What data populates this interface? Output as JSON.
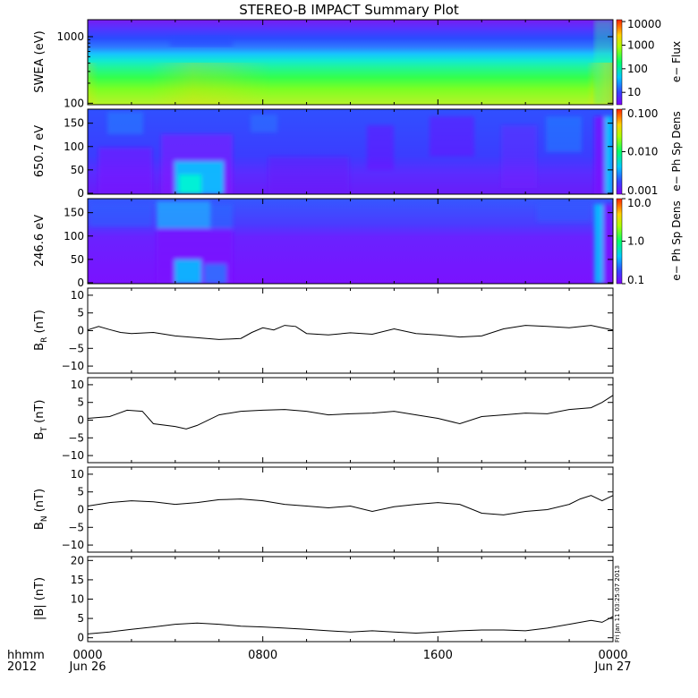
{
  "title": "STEREO-B IMPACT Summary Plot",
  "stamp": "Fri Jan 11 03:25:07 2013",
  "xaxis": {
    "ticks": [
      "0000",
      "0800",
      "1600",
      "0000"
    ],
    "dates": [
      "Jun 26",
      "",
      "",
      "Jun 27"
    ],
    "corner_label_1": "hhmm",
    "corner_label_2": "2012"
  },
  "chart_data": [
    {
      "type": "heatmap",
      "id": "swea",
      "ylabel": "SWEA (eV)",
      "yscale": "log",
      "ylim": [
        95,
        1800
      ],
      "yticks": [
        "1000",
        "100"
      ],
      "yticks_values": [
        1000,
        100
      ],
      "colorbar_label": "e− Flux",
      "colorbar_scale": "log",
      "colorbar_range": [
        3,
        12000
      ],
      "colorbar_ticks": [
        "10000",
        "1000",
        "100",
        "10"
      ],
      "colorbar_tick_values": [
        10000,
        1000,
        100,
        10
      ]
    },
    {
      "type": "heatmap",
      "id": "pad650",
      "ylabel": "650.7 eV",
      "ylim": [
        -2,
        180
      ],
      "yticks": [
        "150",
        "100",
        "50",
        "0"
      ],
      "yticks_values": [
        150,
        100,
        50,
        0
      ],
      "colorbar_label": "e− Ph Sp Dens",
      "colorbar_scale": "log",
      "colorbar_range": [
        0.001,
        0.1
      ],
      "colorbar_ticks": [
        "0.100",
        "0.010",
        "0.001"
      ],
      "colorbar_tick_values": [
        0.1,
        0.01,
        0.001
      ]
    },
    {
      "type": "heatmap",
      "id": "pad246",
      "ylabel": "246.6 eV",
      "ylim": [
        -2,
        180
      ],
      "yticks": [
        "150",
        "100",
        "50",
        "0"
      ],
      "yticks_values": [
        150,
        100,
        50,
        0
      ],
      "colorbar_label": "e− Ph Sp Dens",
      "colorbar_scale": "log",
      "colorbar_range": [
        0.1,
        10
      ],
      "colorbar_ticks": [
        "10.0",
        "1.0",
        "0.1"
      ],
      "colorbar_tick_values": [
        10,
        1,
        0.1
      ]
    },
    {
      "type": "line",
      "id": "br",
      "ylabel_main": "B",
      "ylabel_sub": "R",
      "ylabel_unit": " (nT)",
      "ylim": [
        -12,
        12
      ],
      "yticks": [
        "10",
        "5",
        "0",
        "−5",
        "−10"
      ],
      "yticks_values": [
        10,
        5,
        0,
        -5,
        -10
      ],
      "x_hours": [
        0,
        0.5,
        1,
        1.5,
        2,
        3,
        4,
        5,
        6,
        7,
        7.5,
        8,
        8.5,
        9,
        9.5,
        10,
        11,
        12,
        13,
        14,
        15,
        16,
        17,
        18,
        19,
        20,
        21,
        22,
        23,
        23.5,
        24
      ],
      "values": [
        0.2,
        1.2,
        0.3,
        -0.5,
        -0.8,
        -0.5,
        -1.5,
        -2.0,
        -2.5,
        -2.2,
        -0.5,
        0.8,
        0.2,
        1.5,
        1.2,
        -0.8,
        -1.2,
        -0.6,
        -1.0,
        0.5,
        -0.8,
        -1.2,
        -1.8,
        -1.5,
        0.5,
        1.5,
        1.2,
        0.8,
        1.5,
        0.8,
        0.2
      ]
    },
    {
      "type": "line",
      "id": "bt",
      "ylabel_main": "B",
      "ylabel_sub": "T",
      "ylabel_unit": " (nT)",
      "ylim": [
        -12,
        12
      ],
      "yticks": [
        "10",
        "5",
        "0",
        "−5",
        "−10"
      ],
      "yticks_values": [
        10,
        5,
        0,
        -5,
        -10
      ],
      "x_hours": [
        0,
        1,
        1.8,
        2.5,
        3,
        4,
        4.5,
        5,
        6,
        7,
        8,
        9,
        10,
        11,
        12,
        13,
        14,
        15,
        16,
        17,
        18,
        19,
        20,
        21,
        22,
        23,
        23.5,
        24
      ],
      "values": [
        0.5,
        1.0,
        2.8,
        2.5,
        -1.0,
        -1.8,
        -2.5,
        -1.5,
        1.5,
        2.5,
        2.8,
        3.0,
        2.5,
        1.5,
        1.8,
        2.0,
        2.5,
        1.5,
        0.5,
        -1.0,
        1.0,
        1.5,
        2.0,
        1.8,
        3.0,
        3.5,
        5.0,
        7.0
      ]
    },
    {
      "type": "line",
      "id": "bn",
      "ylabel_main": "B",
      "ylabel_sub": "N",
      "ylabel_unit": " (nT)",
      "ylim": [
        -12,
        12
      ],
      "yticks": [
        "10",
        "5",
        "0",
        "−5",
        "−10"
      ],
      "yticks_values": [
        10,
        5,
        0,
        -5,
        -10
      ],
      "x_hours": [
        0,
        1,
        2,
        3,
        4,
        5,
        6,
        7,
        8,
        9,
        10,
        11,
        12,
        13,
        14,
        15,
        16,
        17,
        18,
        19,
        20,
        21,
        22,
        22.5,
        23,
        23.5,
        24
      ],
      "values": [
        1.0,
        2.0,
        2.5,
        2.2,
        1.5,
        2.0,
        2.8,
        3.0,
        2.5,
        1.5,
        1.0,
        0.5,
        1.0,
        -0.5,
        0.8,
        1.5,
        2.0,
        1.5,
        -1.0,
        -1.5,
        -0.5,
        0.0,
        1.5,
        3.0,
        4.0,
        2.5,
        4.0
      ]
    },
    {
      "type": "line",
      "id": "bmag",
      "ylabel_main": "|B| (nT)",
      "ylim": [
        -1,
        21
      ],
      "yticks": [
        "20",
        "15",
        "10",
        "5",
        "0"
      ],
      "yticks_values": [
        20,
        15,
        10,
        5,
        0
      ],
      "x_hours": [
        0,
        1,
        2,
        3,
        4,
        5,
        6,
        7,
        8,
        9,
        10,
        11,
        12,
        13,
        14,
        15,
        16,
        17,
        18,
        19,
        20,
        21,
        22,
        23,
        23.5,
        24
      ],
      "values": [
        1.0,
        1.5,
        2.2,
        2.8,
        3.5,
        3.8,
        3.5,
        3.0,
        2.8,
        2.5,
        2.2,
        1.8,
        1.5,
        1.8,
        1.5,
        1.2,
        1.5,
        1.8,
        2.0,
        2.0,
        1.8,
        2.5,
        3.5,
        4.5,
        4.0,
        5.5
      ]
    }
  ]
}
